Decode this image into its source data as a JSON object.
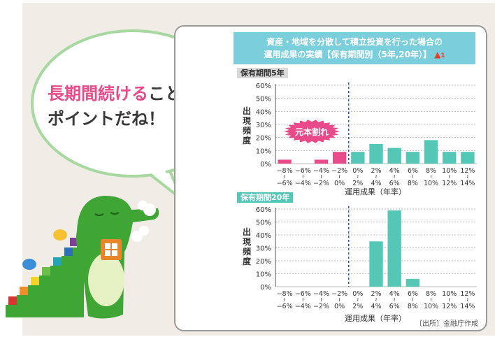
{
  "speech": {
    "highlight": "長期間続ける",
    "rest1": "ことが",
    "line2": "ポイントだね！"
  },
  "title": {
    "line1": "資産・地域を分散して積立投資を行った場合の",
    "line2": "運用成果の実績【保有期間別（5年,20年）】",
    "warn_num": "1"
  },
  "colors": {
    "loss": "#e94b8a",
    "gain": "#54c7b7",
    "title_bg": "#7bcfdc"
  },
  "chart_data": [
    {
      "type": "bar",
      "title": "保有期間5年",
      "ylabel": "出現頻度",
      "xlabel": "運用成果（年率）",
      "yticks": [
        "0%",
        "10%",
        "20%",
        "30%",
        "40%",
        "50%",
        "60%"
      ],
      "ylim": [
        0,
        60
      ],
      "categories_top": [
        "−8%",
        "−6%",
        "−4%",
        "−2%",
        "0%",
        "2%",
        "4%",
        "6%",
        "8%",
        "10%",
        "12%"
      ],
      "categories_bottom": [
        "−6%",
        "−4%",
        "−2%",
        "0%",
        "2%",
        "4%",
        "6%",
        "8%",
        "10%",
        "12%",
        "14%"
      ],
      "values": [
        3,
        0,
        3,
        9,
        9,
        15,
        12,
        9,
        18,
        9,
        9
      ],
      "annotation": "元本割れ",
      "grid": true
    },
    {
      "type": "bar",
      "title": "保有期間20年",
      "ylabel": "出現頻度",
      "xlabel": "運用成果（年率）",
      "yticks": [
        "0%",
        "10%",
        "20%",
        "30%",
        "40%",
        "50%",
        "60%"
      ],
      "ylim": [
        0,
        60
      ],
      "categories_top": [
        "−8%",
        "−6%",
        "−4%",
        "−2%",
        "0%",
        "2%",
        "4%",
        "6%",
        "8%",
        "10%",
        "12%"
      ],
      "categories_bottom": [
        "−6%",
        "−4%",
        "−2%",
        "0%",
        "2%",
        "4%",
        "6%",
        "8%",
        "10%",
        "12%",
        "14%"
      ],
      "values": [
        0,
        0,
        0,
        0,
        0,
        35,
        59,
        6,
        0,
        0,
        0
      ],
      "grid": true
    }
  ],
  "source": "〔出所〕金融庁作成"
}
